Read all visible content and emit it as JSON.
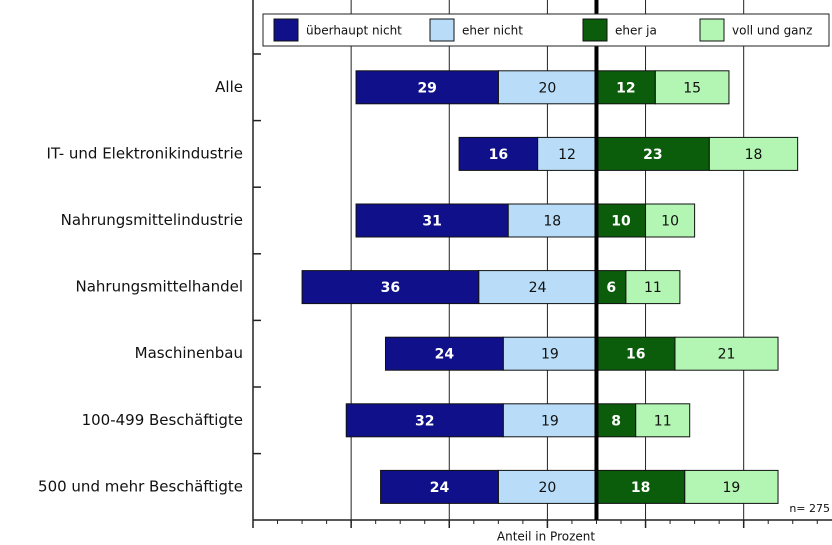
{
  "chart_data": {
    "type": "diverging_bar",
    "categories": [
      "Alle",
      "IT- und Elektronikindustrie",
      "Nahrungsmittelindustrie",
      "Nahrungsmittelhandel",
      "Maschinenbau",
      "100-499 Beschäftigte",
      "500 und mehr Beschäftigte"
    ],
    "series": [
      {
        "name": "überhaupt nicht",
        "color": "#10108a",
        "values": [
          -29,
          -16,
          -31,
          -36,
          -24,
          -32,
          -24
        ],
        "value_labels": [
          "29",
          "16",
          "31",
          "36",
          "24",
          "32",
          "24"
        ]
      },
      {
        "name": "eher nicht",
        "color": "#b9ddf8",
        "values": [
          -20,
          -12,
          -18,
          -24,
          -19,
          -19,
          -20
        ],
        "value_labels": [
          "20",
          "12",
          "18",
          "24",
          "19",
          "19",
          "20"
        ]
      },
      {
        "name": "eher ja",
        "color": "#0b5c0b",
        "values": [
          12,
          23,
          10,
          6,
          16,
          8,
          18
        ]
      },
      {
        "name": "voll und ganz",
        "color": "#b3f6b3",
        "values": [
          15,
          18,
          10,
          11,
          21,
          11,
          19
        ]
      }
    ],
    "x_label": "Anteil in Prozent",
    "annotation": "n= 275",
    "xlim": [
      -70,
      48
    ],
    "xticks": [
      -50,
      -30,
      -10,
      10,
      30
    ],
    "grid": true,
    "legend": "top"
  }
}
